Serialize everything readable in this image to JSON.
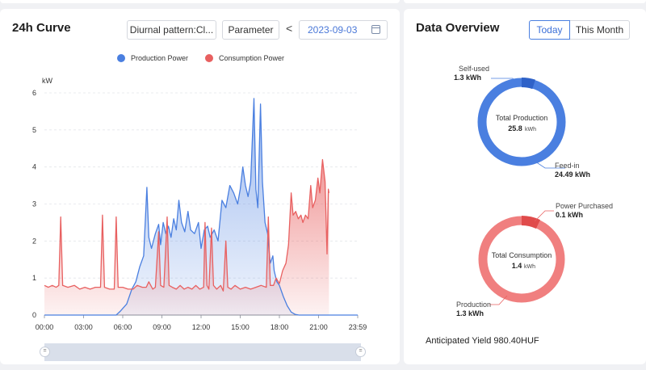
{
  "curve": {
    "title": "24h Curve",
    "pattern_button": "Diurnal pattern:Cl...",
    "parameter_button": "Parameter",
    "prev_symbol": "<",
    "date": "2023-09-03",
    "unit": "kW"
  },
  "chart_data": {
    "type": "area",
    "ylabel": "kW",
    "ylim": [
      0,
      6
    ],
    "y_ticks": [
      "0",
      "1",
      "2",
      "3",
      "4",
      "5",
      "6"
    ],
    "x_ticks": [
      "00:00",
      "03:00",
      "06:00",
      "09:00",
      "12:00",
      "15:00",
      "18:00",
      "21:00",
      "23:59"
    ],
    "legend_position": "top-center",
    "series": [
      {
        "name": "Production Power",
        "color": "#4a7fe0",
        "points": [
          [
            0,
            0
          ],
          [
            5.0,
            0
          ],
          [
            5.5,
            0
          ],
          [
            5.8,
            0.1
          ],
          [
            6.3,
            0.3
          ],
          [
            6.7,
            0.7
          ],
          [
            7.0,
            0.9
          ],
          [
            7.3,
            1.3
          ],
          [
            7.6,
            1.6
          ],
          [
            7.85,
            3.45
          ],
          [
            8.0,
            2.1
          ],
          [
            8.2,
            1.8
          ],
          [
            8.5,
            2.2
          ],
          [
            8.75,
            2.45
          ],
          [
            8.9,
            1.9
          ],
          [
            9.1,
            2.5
          ],
          [
            9.3,
            2.2
          ],
          [
            9.5,
            2.4
          ],
          [
            9.7,
            2.1
          ],
          [
            9.9,
            2.6
          ],
          [
            10.1,
            2.3
          ],
          [
            10.3,
            3.1
          ],
          [
            10.5,
            2.5
          ],
          [
            10.75,
            2.25
          ],
          [
            11.0,
            2.8
          ],
          [
            11.2,
            2.3
          ],
          [
            11.5,
            2.2
          ],
          [
            11.8,
            2.5
          ],
          [
            12.0,
            1.8
          ],
          [
            12.25,
            2.3
          ],
          [
            12.5,
            2.4
          ],
          [
            12.7,
            2.1
          ],
          [
            13.0,
            2.3
          ],
          [
            13.3,
            2.0
          ],
          [
            13.6,
            3.1
          ],
          [
            13.9,
            2.9
          ],
          [
            14.2,
            3.5
          ],
          [
            14.5,
            3.3
          ],
          [
            14.8,
            3.0
          ],
          [
            15.0,
            3.4
          ],
          [
            15.2,
            4.0
          ],
          [
            15.4,
            3.5
          ],
          [
            15.6,
            3.2
          ],
          [
            15.8,
            3.6
          ],
          [
            16.05,
            5.85
          ],
          [
            16.2,
            3.4
          ],
          [
            16.35,
            2.9
          ],
          [
            16.55,
            5.7
          ],
          [
            16.7,
            3.6
          ],
          [
            16.9,
            2.5
          ],
          [
            17.1,
            2.2
          ],
          [
            17.3,
            1.4
          ],
          [
            17.5,
            1.6
          ],
          [
            17.6,
            1.2
          ],
          [
            17.8,
            0.9
          ],
          [
            18.0,
            0.8
          ],
          [
            18.3,
            0.5
          ],
          [
            18.6,
            0.25
          ],
          [
            18.9,
            0.08
          ],
          [
            19.2,
            0.02
          ],
          [
            19.5,
            0
          ],
          [
            24,
            0
          ]
        ]
      },
      {
        "name": "Consumption Power",
        "color": "#e86060",
        "points": [
          [
            0,
            0.8
          ],
          [
            0.3,
            0.75
          ],
          [
            0.6,
            0.8
          ],
          [
            0.9,
            0.75
          ],
          [
            1.1,
            0.8
          ],
          [
            1.25,
            2.65
          ],
          [
            1.4,
            0.8
          ],
          [
            1.8,
            0.75
          ],
          [
            2.3,
            0.8
          ],
          [
            2.7,
            0.7
          ],
          [
            3.1,
            0.75
          ],
          [
            3.5,
            0.7
          ],
          [
            3.9,
            0.75
          ],
          [
            4.3,
            0.75
          ],
          [
            4.45,
            2.7
          ],
          [
            4.6,
            0.75
          ],
          [
            5.0,
            0.7
          ],
          [
            5.35,
            0.7
          ],
          [
            5.5,
            2.65
          ],
          [
            5.65,
            0.75
          ],
          [
            6.0,
            0.75
          ],
          [
            6.4,
            0.7
          ],
          [
            6.8,
            0.7
          ],
          [
            7.1,
            0.8
          ],
          [
            7.5,
            0.75
          ],
          [
            7.8,
            0.75
          ],
          [
            8.0,
            0.9
          ],
          [
            8.3,
            0.7
          ],
          [
            8.5,
            0.75
          ],
          [
            8.75,
            2.25
          ],
          [
            8.9,
            0.8
          ],
          [
            9.15,
            0.75
          ],
          [
            9.4,
            2.65
          ],
          [
            9.55,
            0.8
          ],
          [
            9.8,
            0.75
          ],
          [
            10.1,
            0.7
          ],
          [
            10.4,
            0.8
          ],
          [
            10.7,
            0.7
          ],
          [
            11.0,
            0.75
          ],
          [
            11.3,
            0.7
          ],
          [
            11.6,
            0.8
          ],
          [
            11.9,
            0.7
          ],
          [
            12.2,
            0.75
          ],
          [
            12.3,
            2.5
          ],
          [
            12.45,
            0.8
          ],
          [
            12.6,
            0.7
          ],
          [
            12.8,
            2.35
          ],
          [
            12.95,
            0.8
          ],
          [
            13.2,
            0.7
          ],
          [
            13.5,
            0.8
          ],
          [
            13.7,
            0.65
          ],
          [
            13.9,
            2.0
          ],
          [
            14.05,
            0.75
          ],
          [
            14.3,
            0.7
          ],
          [
            14.6,
            0.8
          ],
          [
            15.0,
            0.7
          ],
          [
            15.4,
            0.75
          ],
          [
            15.8,
            0.7
          ],
          [
            16.2,
            0.75
          ],
          [
            16.6,
            0.8
          ],
          [
            17.0,
            0.75
          ],
          [
            17.15,
            2.65
          ],
          [
            17.3,
            0.8
          ],
          [
            17.55,
            0.8
          ],
          [
            17.75,
            1.0
          ],
          [
            18.0,
            0.85
          ],
          [
            18.25,
            1.2
          ],
          [
            18.5,
            1.4
          ],
          [
            18.7,
            1.9
          ],
          [
            18.9,
            3.3
          ],
          [
            19.05,
            2.7
          ],
          [
            19.25,
            2.8
          ],
          [
            19.45,
            2.6
          ],
          [
            19.65,
            2.7
          ],
          [
            19.8,
            2.5
          ],
          [
            20.0,
            2.7
          ],
          [
            20.2,
            2.6
          ],
          [
            20.4,
            3.5
          ],
          [
            20.55,
            2.9
          ],
          [
            20.75,
            3.1
          ],
          [
            20.95,
            3.7
          ],
          [
            21.1,
            3.3
          ],
          [
            21.3,
            4.2
          ],
          [
            21.5,
            3.6
          ],
          [
            21.65,
            1.65
          ],
          [
            21.75,
            3.4
          ],
          [
            21.8,
            3.3
          ]
        ]
      }
    ]
  },
  "overview": {
    "title": "Data Overview",
    "tab_today": "Today",
    "tab_month": "This Month",
    "production": {
      "center_title": "Total Production",
      "center_value": "25.8",
      "center_unit": "kWh",
      "self_used_label": "Self-used",
      "self_used_value": "1.3 kWh",
      "feed_in_label": "Feed-in",
      "feed_in_value": "24.49 kWh",
      "self_used_fraction": 0.05,
      "ring_color": "#4a7fe0",
      "accent_color": "#2f62c8"
    },
    "consumption": {
      "center_title": "Total Consumption",
      "center_value": "1.4",
      "center_unit": "kWh",
      "purchased_label": "Power Purchased",
      "purchased_value": "0.1 kWh",
      "production_label": "Production",
      "production_value": "1.3 kWh",
      "purchased_fraction": 0.07,
      "ring_color": "#f07f7f",
      "accent_color": "#e04b4b"
    },
    "anticipated_yield": "Anticipated Yield 980.40HUF"
  },
  "slider": {
    "left_handle": "=",
    "right_handle": "="
  }
}
